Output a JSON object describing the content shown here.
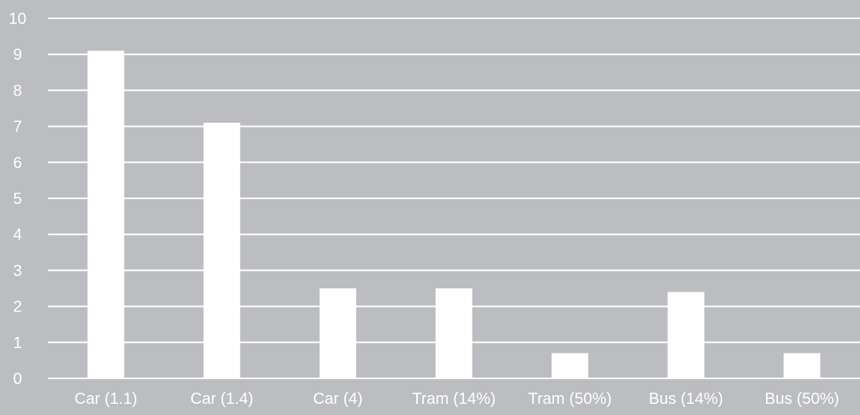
{
  "chart_data": {
    "type": "bar",
    "title": "",
    "xlabel": "",
    "ylabel": "",
    "categories": [
      "Car (1.1)",
      "Car (1.4)",
      "Car (4)",
      "Tram (14%)",
      "Tram (50%)",
      "Bus (14%)",
      "Bus (50%)"
    ],
    "values": [
      9.1,
      7.1,
      2.5,
      2.5,
      0.7,
      2.4,
      0.7
    ],
    "ylim": [
      0,
      10
    ],
    "yticks": [
      "0",
      "1",
      "2",
      "3",
      "4",
      "5",
      "6",
      "7",
      "8",
      "9",
      "10"
    ],
    "grid": true,
    "legend": "none",
    "colors": {
      "background": "#bcbdc0",
      "bar": "#ffffff",
      "grid": "#ffffff",
      "text": "#ffffff"
    }
  }
}
